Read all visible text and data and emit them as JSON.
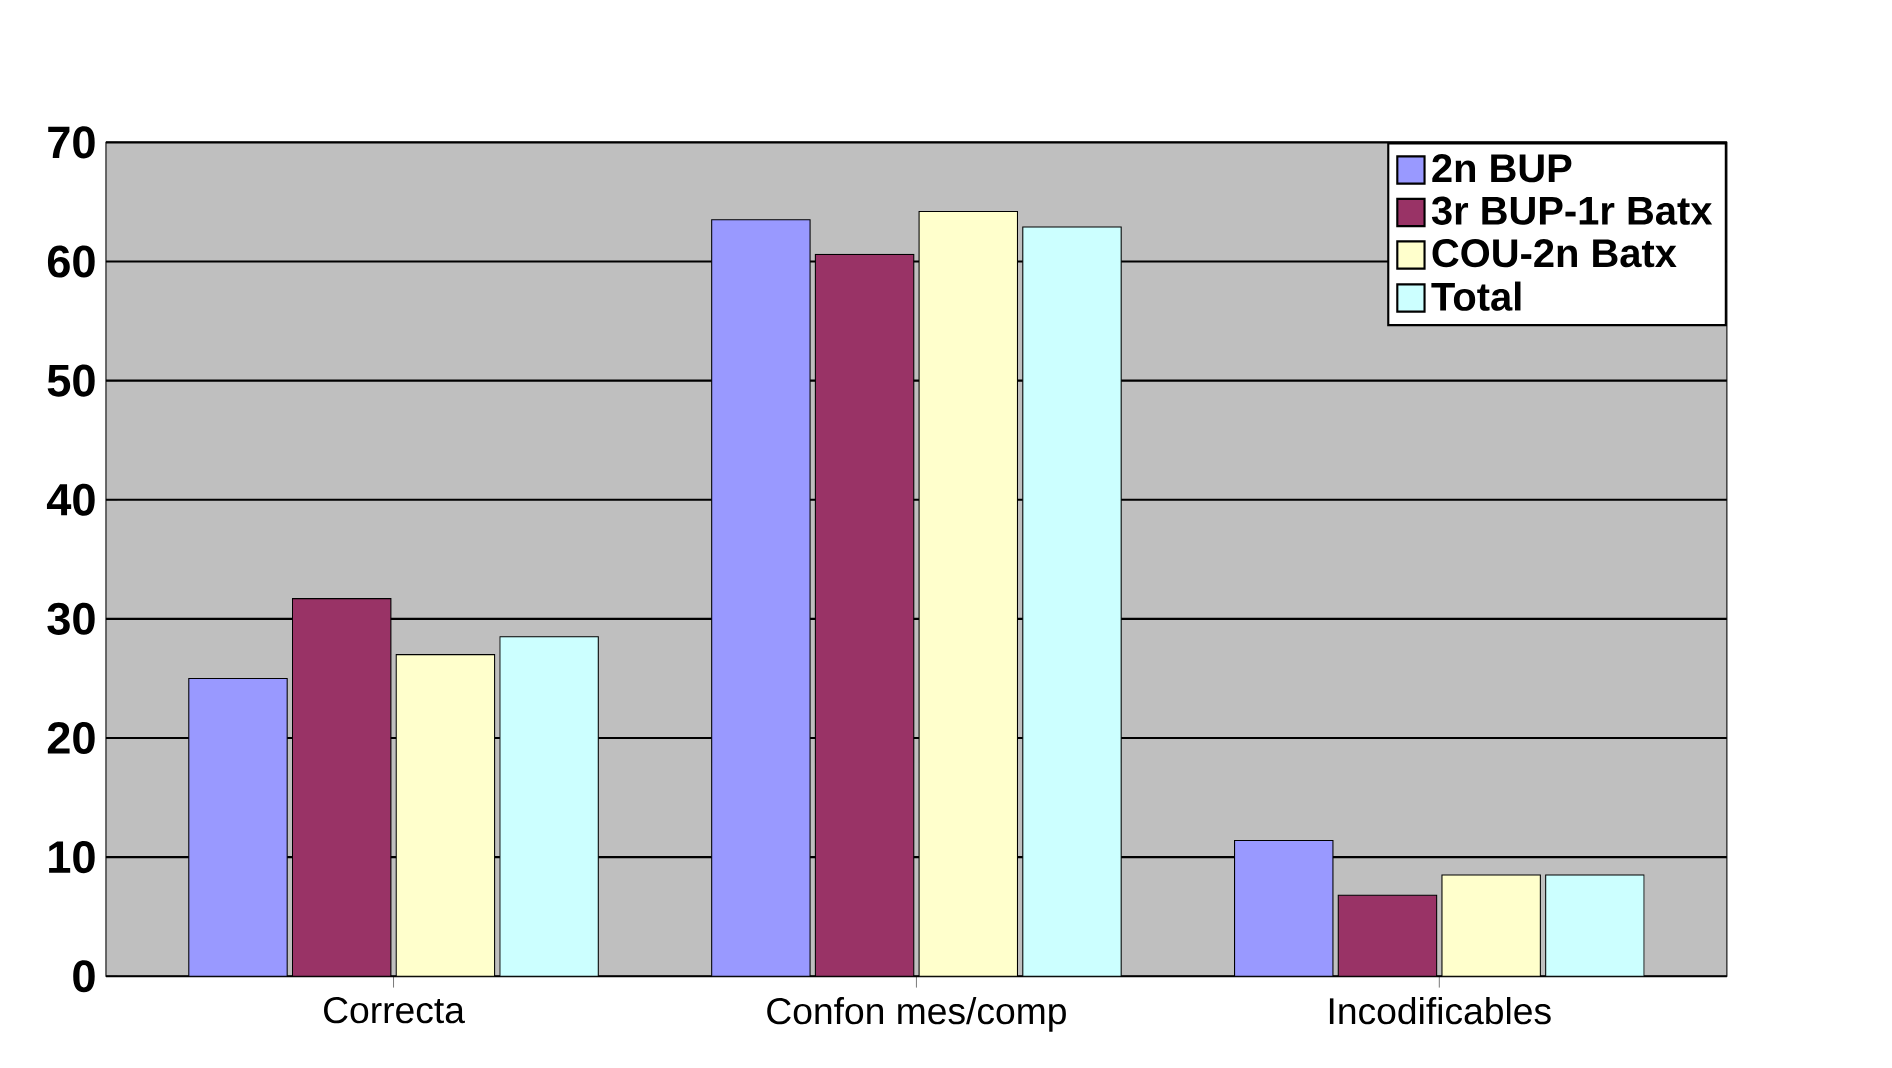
{
  "chart_data": {
    "type": "bar",
    "categories": [
      "Correcta",
      "Confon mes/comp",
      "Incodificables"
    ],
    "series": [
      {
        "name": "2n BUP",
        "color": "#9999ff",
        "values": [
          25,
          63.5,
          11.4
        ]
      },
      {
        "name": "3r BUP-1r Batx",
        "color": "#993366",
        "values": [
          31.7,
          60.6,
          6.8
        ]
      },
      {
        "name": "COU-2n Batx",
        "color": "#ffffcc",
        "values": [
          27,
          64.2,
          8.5
        ]
      },
      {
        "name": "Total",
        "color": "#ccffff",
        "values": [
          28.5,
          62.9,
          8.5
        ]
      }
    ],
    "ylim": [
      0,
      70
    ],
    "yticks": [
      0,
      10,
      20,
      30,
      40,
      50,
      60,
      70
    ],
    "grid": "y",
    "legend": "top right"
  }
}
